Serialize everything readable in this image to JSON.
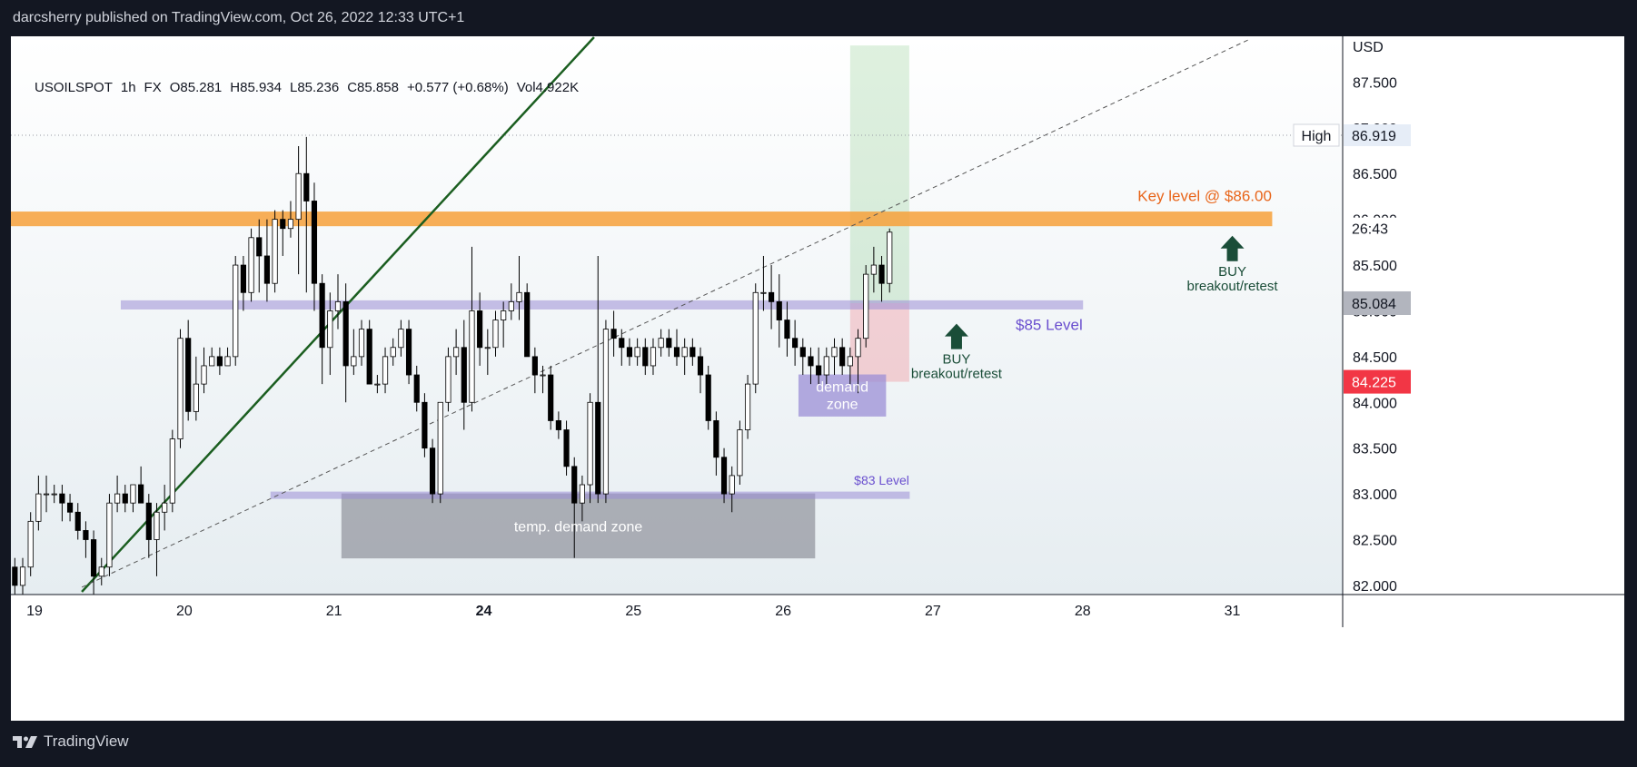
{
  "header": {
    "published": "darcsherry published on TradingView.com, Oct 26, 2022 12:33 UTC+1"
  },
  "footer": {
    "brand": "TradingView"
  },
  "colors": {
    "up": "#ffffff",
    "down": "#000000",
    "orange": "#f7a23b",
    "purple": "#9c8fd6",
    "green_line": "#1b5e20",
    "buy_arrow": "#1a4d38",
    "badge_red": "#f23645",
    "badge_gray": "#b2b5be"
  },
  "chart_data": {
    "type": "candlestick",
    "symbol": "USOILSPOT",
    "timeframe": "1h",
    "exchange": "FX",
    "ohlc_text": {
      "o": "O85.281",
      "h": "H85.934",
      "l": "L85.236",
      "c": "C85.858",
      "chg": "+0.577 (+0.68%)",
      "vol": "Vol4.922K"
    },
    "currency": "USD",
    "ylim": [
      81.9,
      88.0
    ],
    "y_ticks": [
      "82.000",
      "82.500",
      "83.000",
      "83.500",
      "84.000",
      "84.500",
      "85.000",
      "85.500",
      "86.000",
      "86.500",
      "87.000",
      "87.500"
    ],
    "x_ticks": [
      {
        "label": "19",
        "x": 0
      },
      {
        "label": "20",
        "x": 19
      },
      {
        "label": "21",
        "x": 38
      },
      {
        "label": "24",
        "x": 57
      },
      {
        "label": "25",
        "x": 76
      },
      {
        "label": "26",
        "x": 95
      },
      {
        "label": "27",
        "x": 114
      },
      {
        "label": "28",
        "x": 133
      },
      {
        "label": "31",
        "x": 152
      }
    ],
    "xlim": [
      -3,
      166
    ],
    "candles": [
      [
        -2.5,
        82.2,
        82.3,
        81.9,
        82.0
      ],
      [
        -1.5,
        82.0,
        82.3,
        81.9,
        82.2
      ],
      [
        -0.5,
        82.2,
        82.8,
        82.1,
        82.7
      ],
      [
        0.5,
        82.7,
        83.2,
        82.6,
        83.0
      ],
      [
        1.5,
        83.0,
        83.2,
        82.8,
        83.0
      ],
      [
        2.5,
        83.0,
        83.1,
        82.9,
        83.0
      ],
      [
        3.5,
        83.0,
        83.1,
        82.7,
        82.9
      ],
      [
        4.5,
        82.9,
        83.0,
        82.7,
        82.8
      ],
      [
        5.5,
        82.8,
        82.9,
        82.5,
        82.6
      ],
      [
        6.5,
        82.6,
        82.7,
        82.3,
        82.5
      ],
      [
        7.5,
        82.5,
        82.6,
        81.9,
        82.1
      ],
      [
        8.5,
        82.1,
        82.3,
        82.0,
        82.2
      ],
      [
        9.5,
        82.2,
        83.0,
        82.1,
        82.9
      ],
      [
        10.5,
        82.9,
        83.2,
        82.8,
        83.0
      ],
      [
        11.5,
        83.0,
        83.1,
        82.8,
        82.9
      ],
      [
        12.5,
        82.9,
        83.1,
        82.8,
        83.1
      ],
      [
        13.5,
        83.1,
        83.3,
        82.9,
        82.9
      ],
      [
        14.5,
        82.9,
        83.0,
        82.3,
        82.5
      ],
      [
        15.5,
        82.5,
        82.9,
        82.1,
        82.8
      ],
      [
        16.5,
        82.8,
        83.1,
        82.6,
        82.9
      ],
      [
        17.5,
        82.9,
        83.7,
        82.8,
        83.6
      ],
      [
        18.5,
        83.6,
        84.8,
        83.5,
        84.7
      ],
      [
        19.5,
        84.7,
        84.9,
        83.8,
        83.9
      ],
      [
        20.5,
        83.9,
        84.5,
        83.8,
        84.2
      ],
      [
        21.5,
        84.2,
        84.6,
        84.1,
        84.4
      ],
      [
        22.5,
        84.4,
        84.6,
        84.4,
        84.5
      ],
      [
        23.5,
        84.5,
        84.6,
        84.3,
        84.4
      ],
      [
        24.5,
        84.4,
        84.6,
        84.4,
        84.5
      ],
      [
        25.5,
        84.5,
        85.6,
        84.4,
        85.5
      ],
      [
        26.5,
        85.5,
        85.6,
        85.0,
        85.2
      ],
      [
        27.5,
        85.2,
        85.9,
        85.1,
        85.8
      ],
      [
        28.5,
        85.8,
        86.0,
        85.2,
        85.6
      ],
      [
        29.5,
        85.6,
        86.0,
        85.1,
        85.3
      ],
      [
        30.5,
        85.3,
        86.1,
        85.2,
        86.0
      ],
      [
        31.5,
        86.0,
        86.1,
        85.6,
        85.9
      ],
      [
        32.5,
        85.9,
        86.2,
        85.8,
        86.0
      ],
      [
        33.5,
        86.0,
        86.8,
        85.4,
        86.5
      ],
      [
        34.5,
        86.5,
        86.9,
        85.2,
        86.2
      ],
      [
        35.5,
        86.2,
        86.4,
        85.0,
        85.3
      ],
      [
        36.5,
        85.3,
        85.4,
        84.2,
        84.6
      ],
      [
        37.5,
        84.6,
        85.2,
        84.3,
        85.0
      ],
      [
        38.5,
        85.0,
        85.4,
        84.8,
        85.1
      ],
      [
        39.5,
        85.1,
        85.3,
        84.0,
        84.4
      ],
      [
        40.5,
        84.4,
        84.8,
        84.3,
        84.5
      ],
      [
        41.5,
        84.5,
        84.9,
        84.4,
        84.8
      ],
      [
        42.5,
        84.8,
        84.9,
        84.2,
        84.2
      ],
      [
        43.5,
        84.2,
        84.3,
        84.1,
        84.2
      ],
      [
        44.5,
        84.2,
        84.6,
        84.1,
        84.5
      ],
      [
        45.5,
        84.5,
        84.7,
        84.4,
        84.6
      ],
      [
        46.5,
        84.6,
        84.9,
        84.5,
        84.8
      ],
      [
        47.5,
        84.8,
        84.9,
        84.2,
        84.3
      ],
      [
        48.5,
        84.3,
        84.4,
        83.9,
        84.0
      ],
      [
        49.5,
        84.0,
        84.1,
        83.4,
        83.5
      ],
      [
        50.5,
        83.5,
        83.6,
        82.9,
        83.0
      ],
      [
        51.5,
        83.0,
        84.0,
        82.9,
        84.0
      ],
      [
        52.5,
        84.0,
        84.6,
        83.9,
        84.5
      ],
      [
        53.5,
        84.5,
        84.8,
        84.3,
        84.6
      ],
      [
        54.5,
        84.6,
        84.9,
        83.7,
        84.0
      ],
      [
        55.5,
        84.0,
        85.7,
        83.9,
        85.0
      ],
      [
        56.5,
        85.0,
        85.2,
        84.4,
        84.6
      ],
      [
        57.5,
        84.6,
        84.8,
        84.3,
        84.6
      ],
      [
        58.5,
        84.6,
        85.0,
        84.5,
        84.9
      ],
      [
        59.5,
        84.9,
        85.1,
        84.6,
        85.0
      ],
      [
        60.5,
        85.0,
        85.3,
        84.9,
        85.1
      ],
      [
        61.5,
        85.1,
        85.6,
        84.9,
        85.2
      ],
      [
        62.5,
        85.2,
        85.3,
        84.5,
        84.5
      ],
      [
        63.5,
        84.5,
        84.6,
        84.1,
        84.3
      ],
      [
        64.5,
        84.3,
        84.4,
        84.1,
        84.3
      ],
      [
        65.5,
        84.3,
        84.4,
        83.7,
        83.8
      ],
      [
        66.5,
        83.8,
        83.9,
        83.6,
        83.7
      ],
      [
        67.5,
        83.7,
        83.8,
        83.2,
        83.3
      ],
      [
        68.5,
        83.3,
        83.4,
        82.3,
        82.9
      ],
      [
        69.5,
        82.9,
        83.2,
        82.7,
        83.1
      ],
      [
        70.5,
        83.1,
        84.1,
        82.9,
        84.0
      ],
      [
        71.5,
        84.0,
        85.6,
        82.9,
        83.0
      ],
      [
        72.5,
        83.0,
        84.9,
        82.9,
        84.8
      ],
      [
        73.5,
        84.8,
        85.0,
        84.5,
        84.7
      ],
      [
        74.5,
        84.7,
        84.8,
        84.4,
        84.6
      ],
      [
        75.5,
        84.6,
        84.7,
        84.4,
        84.5
      ],
      [
        76.5,
        84.5,
        84.7,
        84.4,
        84.6
      ],
      [
        77.5,
        84.6,
        84.7,
        84.3,
        84.4
      ],
      [
        78.5,
        84.4,
        84.7,
        84.3,
        84.6
      ],
      [
        79.5,
        84.6,
        84.8,
        84.5,
        84.7
      ],
      [
        80.5,
        84.7,
        84.8,
        84.5,
        84.6
      ],
      [
        81.5,
        84.6,
        84.8,
        84.4,
        84.5
      ],
      [
        82.5,
        84.5,
        84.7,
        84.3,
        84.6
      ],
      [
        83.5,
        84.6,
        84.7,
        84.4,
        84.5
      ],
      [
        84.5,
        84.5,
        84.6,
        84.1,
        84.3
      ],
      [
        85.5,
        84.3,
        84.4,
        83.7,
        83.8
      ],
      [
        86.5,
        83.8,
        83.9,
        83.2,
        83.4
      ],
      [
        87.5,
        83.4,
        83.5,
        82.9,
        83.0
      ],
      [
        88.5,
        83.0,
        83.3,
        82.8,
        83.2
      ],
      [
        89.5,
        83.2,
        83.8,
        83.1,
        83.7
      ],
      [
        90.5,
        83.7,
        84.3,
        83.6,
        84.2
      ],
      [
        91.5,
        84.2,
        85.3,
        84.1,
        85.2
      ],
      [
        92.5,
        85.2,
        85.6,
        85.0,
        85.2
      ],
      [
        93.5,
        85.2,
        85.5,
        84.8,
        85.1
      ],
      [
        94.5,
        85.1,
        85.4,
        84.6,
        84.9
      ],
      [
        95.5,
        84.9,
        85.1,
        84.5,
        84.7
      ],
      [
        96.5,
        84.7,
        84.9,
        84.4,
        84.6
      ],
      [
        97.5,
        84.6,
        84.7,
        84.3,
        84.5
      ],
      [
        98.5,
        84.5,
        84.6,
        84.2,
        84.4
      ],
      [
        99.5,
        84.4,
        84.6,
        84.2,
        84.3
      ],
      [
        100.5,
        84.3,
        84.6,
        84.2,
        84.5
      ],
      [
        101.5,
        84.5,
        84.7,
        84.3,
        84.6
      ],
      [
        102.5,
        84.6,
        84.7,
        84.3,
        84.4
      ],
      [
        103.5,
        84.4,
        84.6,
        84.2,
        84.5
      ],
      [
        104.5,
        84.5,
        84.8,
        84.1,
        84.7
      ],
      [
        105.5,
        84.7,
        85.5,
        84.6,
        85.4
      ],
      [
        106.5,
        85.4,
        85.7,
        85.2,
        85.5
      ],
      [
        107.5,
        85.5,
        85.6,
        85.1,
        85.3
      ],
      [
        108.5,
        85.3,
        85.9,
        85.2,
        85.86
      ]
    ],
    "levels": [
      {
        "label": "Key level @ $86.00",
        "y_top": 86.08,
        "y_bot": 85.93,
        "x_from": -3,
        "x_to": 157,
        "color": "#f7a23b"
      },
      {
        "label": "$85 Level",
        "y_top": 85.11,
        "y_bot": 85.02,
        "x_from": 11,
        "x_to": 133,
        "color": "#9c8fd6"
      },
      {
        "label": "$83 Level",
        "y_top": 83.02,
        "y_bot": 82.95,
        "x_from": 30,
        "x_to": 111,
        "color": "#9c8fd6"
      }
    ],
    "zones": [
      {
        "label": "temp. demand zone",
        "x_from": 39,
        "x_to": 99,
        "y_top": 83.0,
        "y_bot": 82.3,
        "color": "#9598a1"
      },
      {
        "label_lines": [
          "demand",
          "zone"
        ],
        "x_from": 97,
        "x_to": 108,
        "y_top": 84.3,
        "y_bot": 83.85,
        "color": "#9c8fd6"
      }
    ],
    "position": {
      "x_from": 103.5,
      "x_to": 111,
      "entry": 85.084,
      "target": 87.9,
      "stop": 84.225
    },
    "annotations": [
      {
        "label_lines": [
          "BUY",
          "breakout/retest"
        ],
        "x": 152,
        "arrow_y": 85.82,
        "text_y": 85.55,
        "color": "#1a4d38"
      },
      {
        "label_lines": [
          "BUY",
          "breakout/retest"
        ],
        "x": 117,
        "arrow_y": 84.86,
        "text_y": 84.6,
        "color": "#1a4d38"
      }
    ],
    "lines": [
      {
        "kind": "solid",
        "color": "#1b5e20",
        "x1": 6,
        "y1": 81.93,
        "x2": 71,
        "y2": 87.99
      },
      {
        "kind": "dashed",
        "color": "#555555",
        "x1": 6,
        "y1": 81.98,
        "x2": 154,
        "y2": 87.96
      },
      {
        "kind": "dotted",
        "color": "#9598a1",
        "x1": -3,
        "y1": 86.919,
        "x2": 169,
        "y2": 86.919
      }
    ],
    "price_badges": [
      {
        "text": "High",
        "value": "86.919",
        "price": 86.919,
        "style": "outline"
      },
      {
        "text": "26:43",
        "price": 85.9,
        "style": "timer"
      },
      {
        "text": "85.084",
        "price": 85.084,
        "style": "gray"
      },
      {
        "text": "84.225",
        "price": 84.225,
        "style": "red"
      }
    ]
  }
}
